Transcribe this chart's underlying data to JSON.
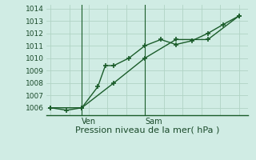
{
  "xlabel": "Pression niveau de la mer( hPa )",
  "bg_color": "#d0ece4",
  "plot_bg_color": "#d0ece4",
  "grid_color": "#b0d4c4",
  "line_color": "#1a5c2a",
  "ylim": [
    1005.4,
    1014.3
  ],
  "yticks": [
    1006,
    1007,
    1008,
    1009,
    1010,
    1011,
    1012,
    1013,
    1014
  ],
  "vlines_x": [
    0.33,
    1.0
  ],
  "vline_labels": [
    "Ven",
    "Sam"
  ],
  "series1_x": [
    0.0,
    0.17,
    0.33,
    0.5,
    0.58,
    0.67,
    0.83,
    1.0,
    1.17,
    1.33,
    1.5,
    1.67,
    1.83,
    2.0
  ],
  "series1_y": [
    1006.0,
    1005.8,
    1006.0,
    1007.7,
    1009.4,
    1009.4,
    1010.0,
    1011.0,
    1011.5,
    1011.1,
    1011.4,
    1012.0,
    1012.7,
    1013.4
  ],
  "series2_x": [
    0.0,
    0.33,
    0.67,
    1.0,
    1.33,
    1.67,
    2.0
  ],
  "series2_y": [
    1006.0,
    1006.0,
    1008.0,
    1010.0,
    1011.5,
    1011.5,
    1013.4
  ],
  "marker": "+",
  "linewidth": 1.0,
  "markersize": 4,
  "markeredgewidth": 1.2,
  "xlabel_fontsize": 8,
  "ytick_fontsize": 6.5,
  "xtick_fontsize": 7
}
